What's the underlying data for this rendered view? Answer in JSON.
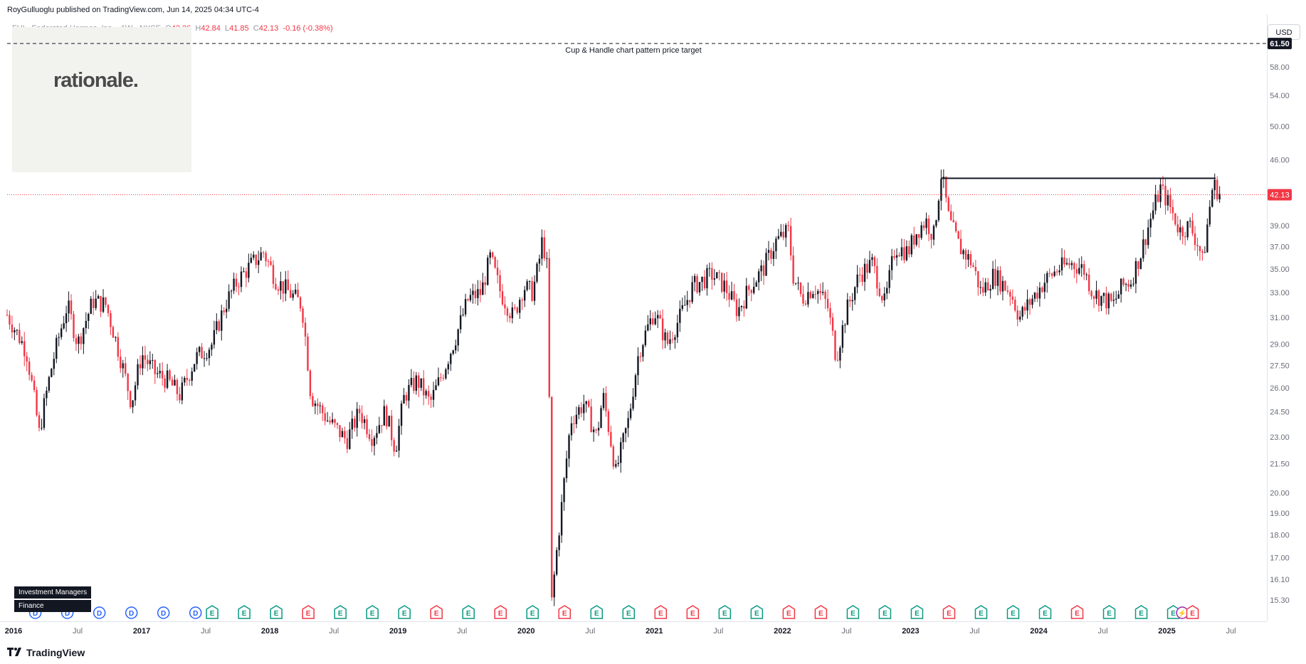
{
  "header": {
    "publisher_line": "RoyGulluoglu published on TradingView.com, Jun 14, 2025 04:34 UTC-4"
  },
  "symbol": {
    "name": "FHI · Federated Hermes, Inc. · 1W · NYSE",
    "open_label": "O",
    "open": "42.26",
    "high_label": "H",
    "high": "42.84",
    "low_label": "L",
    "low": "41.85",
    "close_label": "C",
    "close": "42.13",
    "change": "-0.16 (-0.38%)"
  },
  "currency_button": "USD",
  "logo_text": "rationale.",
  "sector_badge": "Investment Managers",
  "sector_badge2": "Finance",
  "footer": {
    "brand": "TradingView"
  },
  "colors": {
    "up": "#131722",
    "down": "#f23645",
    "dividend": "#2962ff",
    "earnings_pos": "#089981",
    "earnings_neg": "#f23645",
    "split": "#9c27b0"
  },
  "chart_data": {
    "type": "candlestick",
    "scale": "log",
    "ylim": [
      14.5,
      65
    ],
    "y_ticks": [
      "61.50",
      "58.00",
      "54.00",
      "50.00",
      "46.00",
      "42.13",
      "39.00",
      "37.00",
      "35.00",
      "33.00",
      "31.00",
      "29.00",
      "27.50",
      "26.00",
      "24.50",
      "23.00",
      "21.50",
      "20.00",
      "19.00",
      "18.00",
      "17.00",
      "16.10",
      "15.30"
    ],
    "x_ticks": [
      {
        "label": "2016",
        "t": 2016.0
      },
      {
        "label": "Jul",
        "t": 2016.5
      },
      {
        "label": "2017",
        "t": 2017.0
      },
      {
        "label": "Jul",
        "t": 2017.5
      },
      {
        "label": "2018",
        "t": 2018.0
      },
      {
        "label": "Jul",
        "t": 2018.5
      },
      {
        "label": "2019",
        "t": 2019.0
      },
      {
        "label": "Jul",
        "t": 2019.5
      },
      {
        "label": "2020",
        "t": 2020.0
      },
      {
        "label": "Jul",
        "t": 2020.5
      },
      {
        "label": "2021",
        "t": 2021.0
      },
      {
        "label": "Jul",
        "t": 2021.5
      },
      {
        "label": "2022",
        "t": 2022.0
      },
      {
        "label": "Jul",
        "t": 2022.5
      },
      {
        "label": "2023",
        "t": 2023.0
      },
      {
        "label": "Jul",
        "t": 2023.5
      },
      {
        "label": "2024",
        "t": 2024.0
      },
      {
        "label": "Jul",
        "t": 2024.5
      },
      {
        "label": "2025",
        "t": 2025.0
      },
      {
        "label": "Jul",
        "t": 2025.5
      }
    ],
    "last_price": 42.13,
    "target_price": 61.5,
    "target_label": "Cup & Handle chart pattern price target",
    "resistance": {
      "price": 43.9,
      "from": 2023.24,
      "to": 2025.38
    },
    "price_path": [
      [
        2015.95,
        31.2
      ],
      [
        2016.1,
        28.5
      ],
      [
        2016.2,
        23.2
      ],
      [
        2016.3,
        27.5
      ],
      [
        2016.42,
        32.0
      ],
      [
        2016.5,
        29.0
      ],
      [
        2016.62,
        32.3
      ],
      [
        2016.72,
        32.0
      ],
      [
        2016.82,
        28.5
      ],
      [
        2016.92,
        25.0
      ],
      [
        2017.0,
        28.3
      ],
      [
        2017.1,
        27.0
      ],
      [
        2017.2,
        26.5
      ],
      [
        2017.3,
        25.5
      ],
      [
        2017.42,
        28.0
      ],
      [
        2017.55,
        29.0
      ],
      [
        2017.65,
        32.0
      ],
      [
        2017.75,
        34.0
      ],
      [
        2017.85,
        35.3
      ],
      [
        2017.95,
        36.5
      ],
      [
        2018.05,
        34.0
      ],
      [
        2018.15,
        33.0
      ],
      [
        2018.25,
        32.0
      ],
      [
        2018.32,
        25.5
      ],
      [
        2018.45,
        24.0
      ],
      [
        2018.6,
        22.8
      ],
      [
        2018.7,
        24.5
      ],
      [
        2018.8,
        23.0
      ],
      [
        2018.9,
        24.5
      ],
      [
        2018.98,
        22.3
      ],
      [
        2019.05,
        25.5
      ],
      [
        2019.15,
        26.5
      ],
      [
        2019.25,
        25.0
      ],
      [
        2019.35,
        27.0
      ],
      [
        2019.45,
        29.5
      ],
      [
        2019.55,
        32.5
      ],
      [
        2019.65,
        33.0
      ],
      [
        2019.72,
        36.0
      ],
      [
        2019.8,
        33.0
      ],
      [
        2019.9,
        31.0
      ],
      [
        2019.98,
        33.5
      ],
      [
        2020.05,
        33.0
      ],
      [
        2020.1,
        35.5
      ],
      [
        2020.12,
        37.5
      ],
      [
        2020.16,
        36.0
      ],
      [
        2020.2,
        15.2
      ],
      [
        2020.28,
        19.5
      ],
      [
        2020.35,
        24.0
      ],
      [
        2020.45,
        25.0
      ],
      [
        2020.55,
        23.0
      ],
      [
        2020.6,
        25.5
      ],
      [
        2020.7,
        21.0
      ],
      [
        2020.8,
        24.0
      ],
      [
        2020.88,
        28.5
      ],
      [
        2021.0,
        31.5
      ],
      [
        2021.1,
        29.0
      ],
      [
        2021.2,
        31.0
      ],
      [
        2021.3,
        33.5
      ],
      [
        2021.45,
        34.5
      ],
      [
        2021.55,
        33.5
      ],
      [
        2021.65,
        31.5
      ],
      [
        2021.75,
        33.5
      ],
      [
        2021.85,
        35.0
      ],
      [
        2021.95,
        37.5
      ],
      [
        2022.05,
        38.5
      ],
      [
        2022.08,
        34.5
      ],
      [
        2022.15,
        32.5
      ],
      [
        2022.25,
        33.5
      ],
      [
        2022.35,
        32.0
      ],
      [
        2022.42,
        28.0
      ],
      [
        2022.5,
        31.5
      ],
      [
        2022.6,
        34.5
      ],
      [
        2022.7,
        35.5
      ],
      [
        2022.8,
        32.0
      ],
      [
        2022.88,
        37.0
      ],
      [
        2022.98,
        36.5
      ],
      [
        2023.05,
        38.5
      ],
      [
        2023.12,
        39.5
      ],
      [
        2023.18,
        38.0
      ],
      [
        2023.24,
        44.5
      ],
      [
        2023.3,
        39.5
      ],
      [
        2023.38,
        37.0
      ],
      [
        2023.48,
        35.5
      ],
      [
        2023.55,
        33.0
      ],
      [
        2023.65,
        34.5
      ],
      [
        2023.78,
        33.0
      ],
      [
        2023.85,
        31.0
      ],
      [
        2023.95,
        32.5
      ],
      [
        2024.05,
        34.0
      ],
      [
        2024.15,
        35.0
      ],
      [
        2024.25,
        35.5
      ],
      [
        2024.35,
        35.0
      ],
      [
        2024.42,
        33.0
      ],
      [
        2024.5,
        32.5
      ],
      [
        2024.58,
        32.0
      ],
      [
        2024.65,
        33.5
      ],
      [
        2024.72,
        34.0
      ],
      [
        2024.8,
        36.5
      ],
      [
        2024.88,
        40.0
      ],
      [
        2024.95,
        42.8
      ],
      [
        2025.02,
        41.0
      ],
      [
        2025.1,
        38.5
      ],
      [
        2025.18,
        39.0
      ],
      [
        2025.25,
        37.0
      ],
      [
        2025.28,
        35.5
      ],
      [
        2025.32,
        39.5
      ],
      [
        2025.36,
        43.3
      ],
      [
        2025.42,
        42.1
      ]
    ],
    "events": [
      {
        "type": "D",
        "t": 2016.17
      },
      {
        "type": "D",
        "t": 2016.42
      },
      {
        "type": "D",
        "t": 2016.67
      },
      {
        "type": "D",
        "t": 2016.92
      },
      {
        "type": "D",
        "t": 2017.17
      },
      {
        "type": "D",
        "t": 2017.42
      },
      {
        "type": "E+",
        "t": 2017.55
      },
      {
        "type": "E+",
        "t": 2017.8
      },
      {
        "type": "E+",
        "t": 2018.05
      },
      {
        "type": "E-",
        "t": 2018.3
      },
      {
        "type": "E+",
        "t": 2018.55
      },
      {
        "type": "E+",
        "t": 2018.8
      },
      {
        "type": "E+",
        "t": 2019.05
      },
      {
        "type": "E-",
        "t": 2019.3
      },
      {
        "type": "E+",
        "t": 2019.55
      },
      {
        "type": "E-",
        "t": 2019.8
      },
      {
        "type": "E+",
        "t": 2020.05
      },
      {
        "type": "E-",
        "t": 2020.3
      },
      {
        "type": "E+",
        "t": 2020.55
      },
      {
        "type": "E+",
        "t": 2020.8
      },
      {
        "type": "E-",
        "t": 2021.05
      },
      {
        "type": "E-",
        "t": 2021.3
      },
      {
        "type": "E+",
        "t": 2021.55
      },
      {
        "type": "E+",
        "t": 2021.8
      },
      {
        "type": "E-",
        "t": 2022.05
      },
      {
        "type": "E-",
        "t": 2022.3
      },
      {
        "type": "E+",
        "t": 2022.55
      },
      {
        "type": "E+",
        "t": 2022.8
      },
      {
        "type": "E+",
        "t": 2023.05
      },
      {
        "type": "E-",
        "t": 2023.3
      },
      {
        "type": "E+",
        "t": 2023.55
      },
      {
        "type": "E+",
        "t": 2023.8
      },
      {
        "type": "E+",
        "t": 2024.05
      },
      {
        "type": "E-",
        "t": 2024.3
      },
      {
        "type": "E+",
        "t": 2024.55
      },
      {
        "type": "E+",
        "t": 2024.8
      },
      {
        "type": "E+",
        "t": 2025.05
      },
      {
        "type": "S",
        "t": 2025.12
      },
      {
        "type": "E-",
        "t": 2025.2
      }
    ]
  }
}
